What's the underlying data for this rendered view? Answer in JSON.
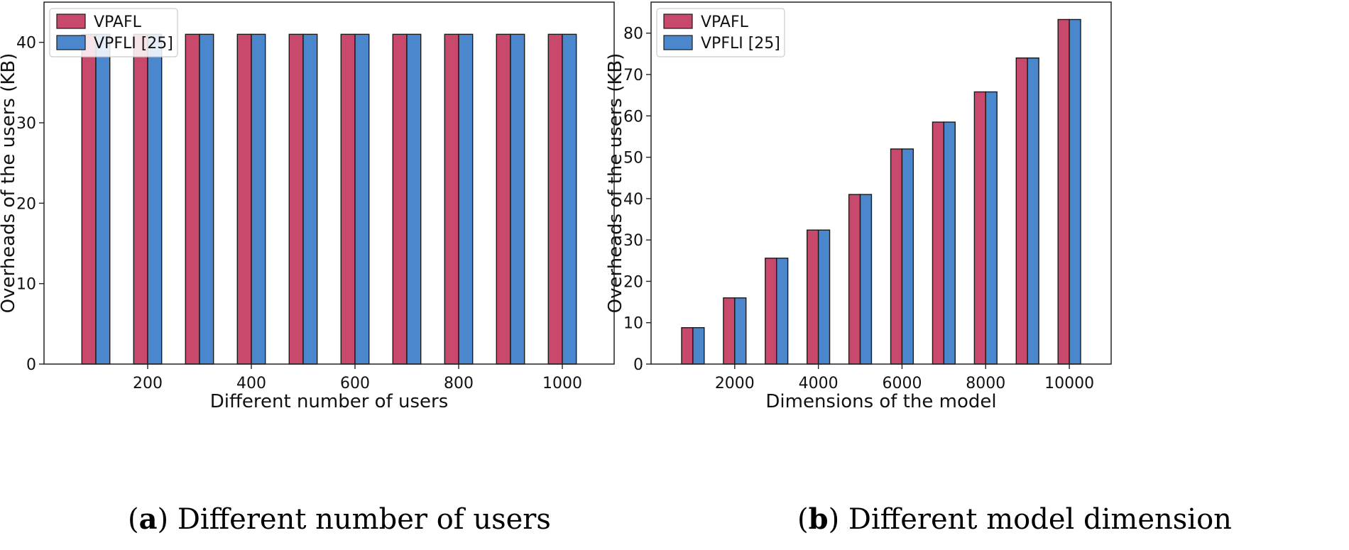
{
  "colors": {
    "vpafl": "#c8496b",
    "vpfli": "#4a87cc",
    "edge": "#1a1a1a"
  },
  "chart_data": [
    {
      "type": "bar",
      "categories": [
        "100",
        "200",
        "300",
        "400",
        "500",
        "600",
        "700",
        "800",
        "900",
        "1000"
      ],
      "series": [
        {
          "name": "VPAFL",
          "values": [
            41,
            41,
            41,
            41,
            41,
            41,
            41,
            41,
            41,
            41
          ]
        },
        {
          "name": "VPFLI [25]",
          "values": [
            41,
            41,
            41,
            41,
            41,
            41,
            41,
            41,
            41,
            41
          ]
        }
      ],
      "xticks": [
        "200",
        "400",
        "600",
        "800",
        "1000"
      ],
      "yticks": [
        0,
        10,
        20,
        30,
        40
      ],
      "ylim": [
        0,
        45
      ],
      "xlabel": "Different number of users",
      "ylabel": "Overheads of the users (KB)",
      "legend": "top-left",
      "caption_label": "(a)",
      "caption_letter": "a",
      "caption_text": "Different number of users"
    },
    {
      "type": "bar",
      "categories": [
        "1000",
        "2000",
        "3000",
        "4000",
        "5000",
        "6000",
        "7000",
        "8000",
        "9000",
        "10000"
      ],
      "series": [
        {
          "name": "VPAFL",
          "values": [
            8.8,
            16.0,
            25.6,
            32.4,
            41.0,
            52.0,
            58.5,
            65.8,
            74.0,
            83.3
          ]
        },
        {
          "name": "VPFLI [25]",
          "values": [
            8.8,
            16.0,
            25.6,
            32.4,
            41.0,
            52.0,
            58.5,
            65.8,
            74.0,
            83.3
          ]
        }
      ],
      "xticks": [
        "2000",
        "4000",
        "6000",
        "8000",
        "10000"
      ],
      "yticks": [
        0,
        10,
        20,
        30,
        40,
        50,
        60,
        70,
        80
      ],
      "ylim": [
        0,
        87.5
      ],
      "xlabel": "Dimensions of the model",
      "ylabel": "Overheads of the users (KB)",
      "legend": "top-left",
      "caption_label": "(b)",
      "caption_letter": "b",
      "caption_text": "Different model dimension"
    }
  ]
}
